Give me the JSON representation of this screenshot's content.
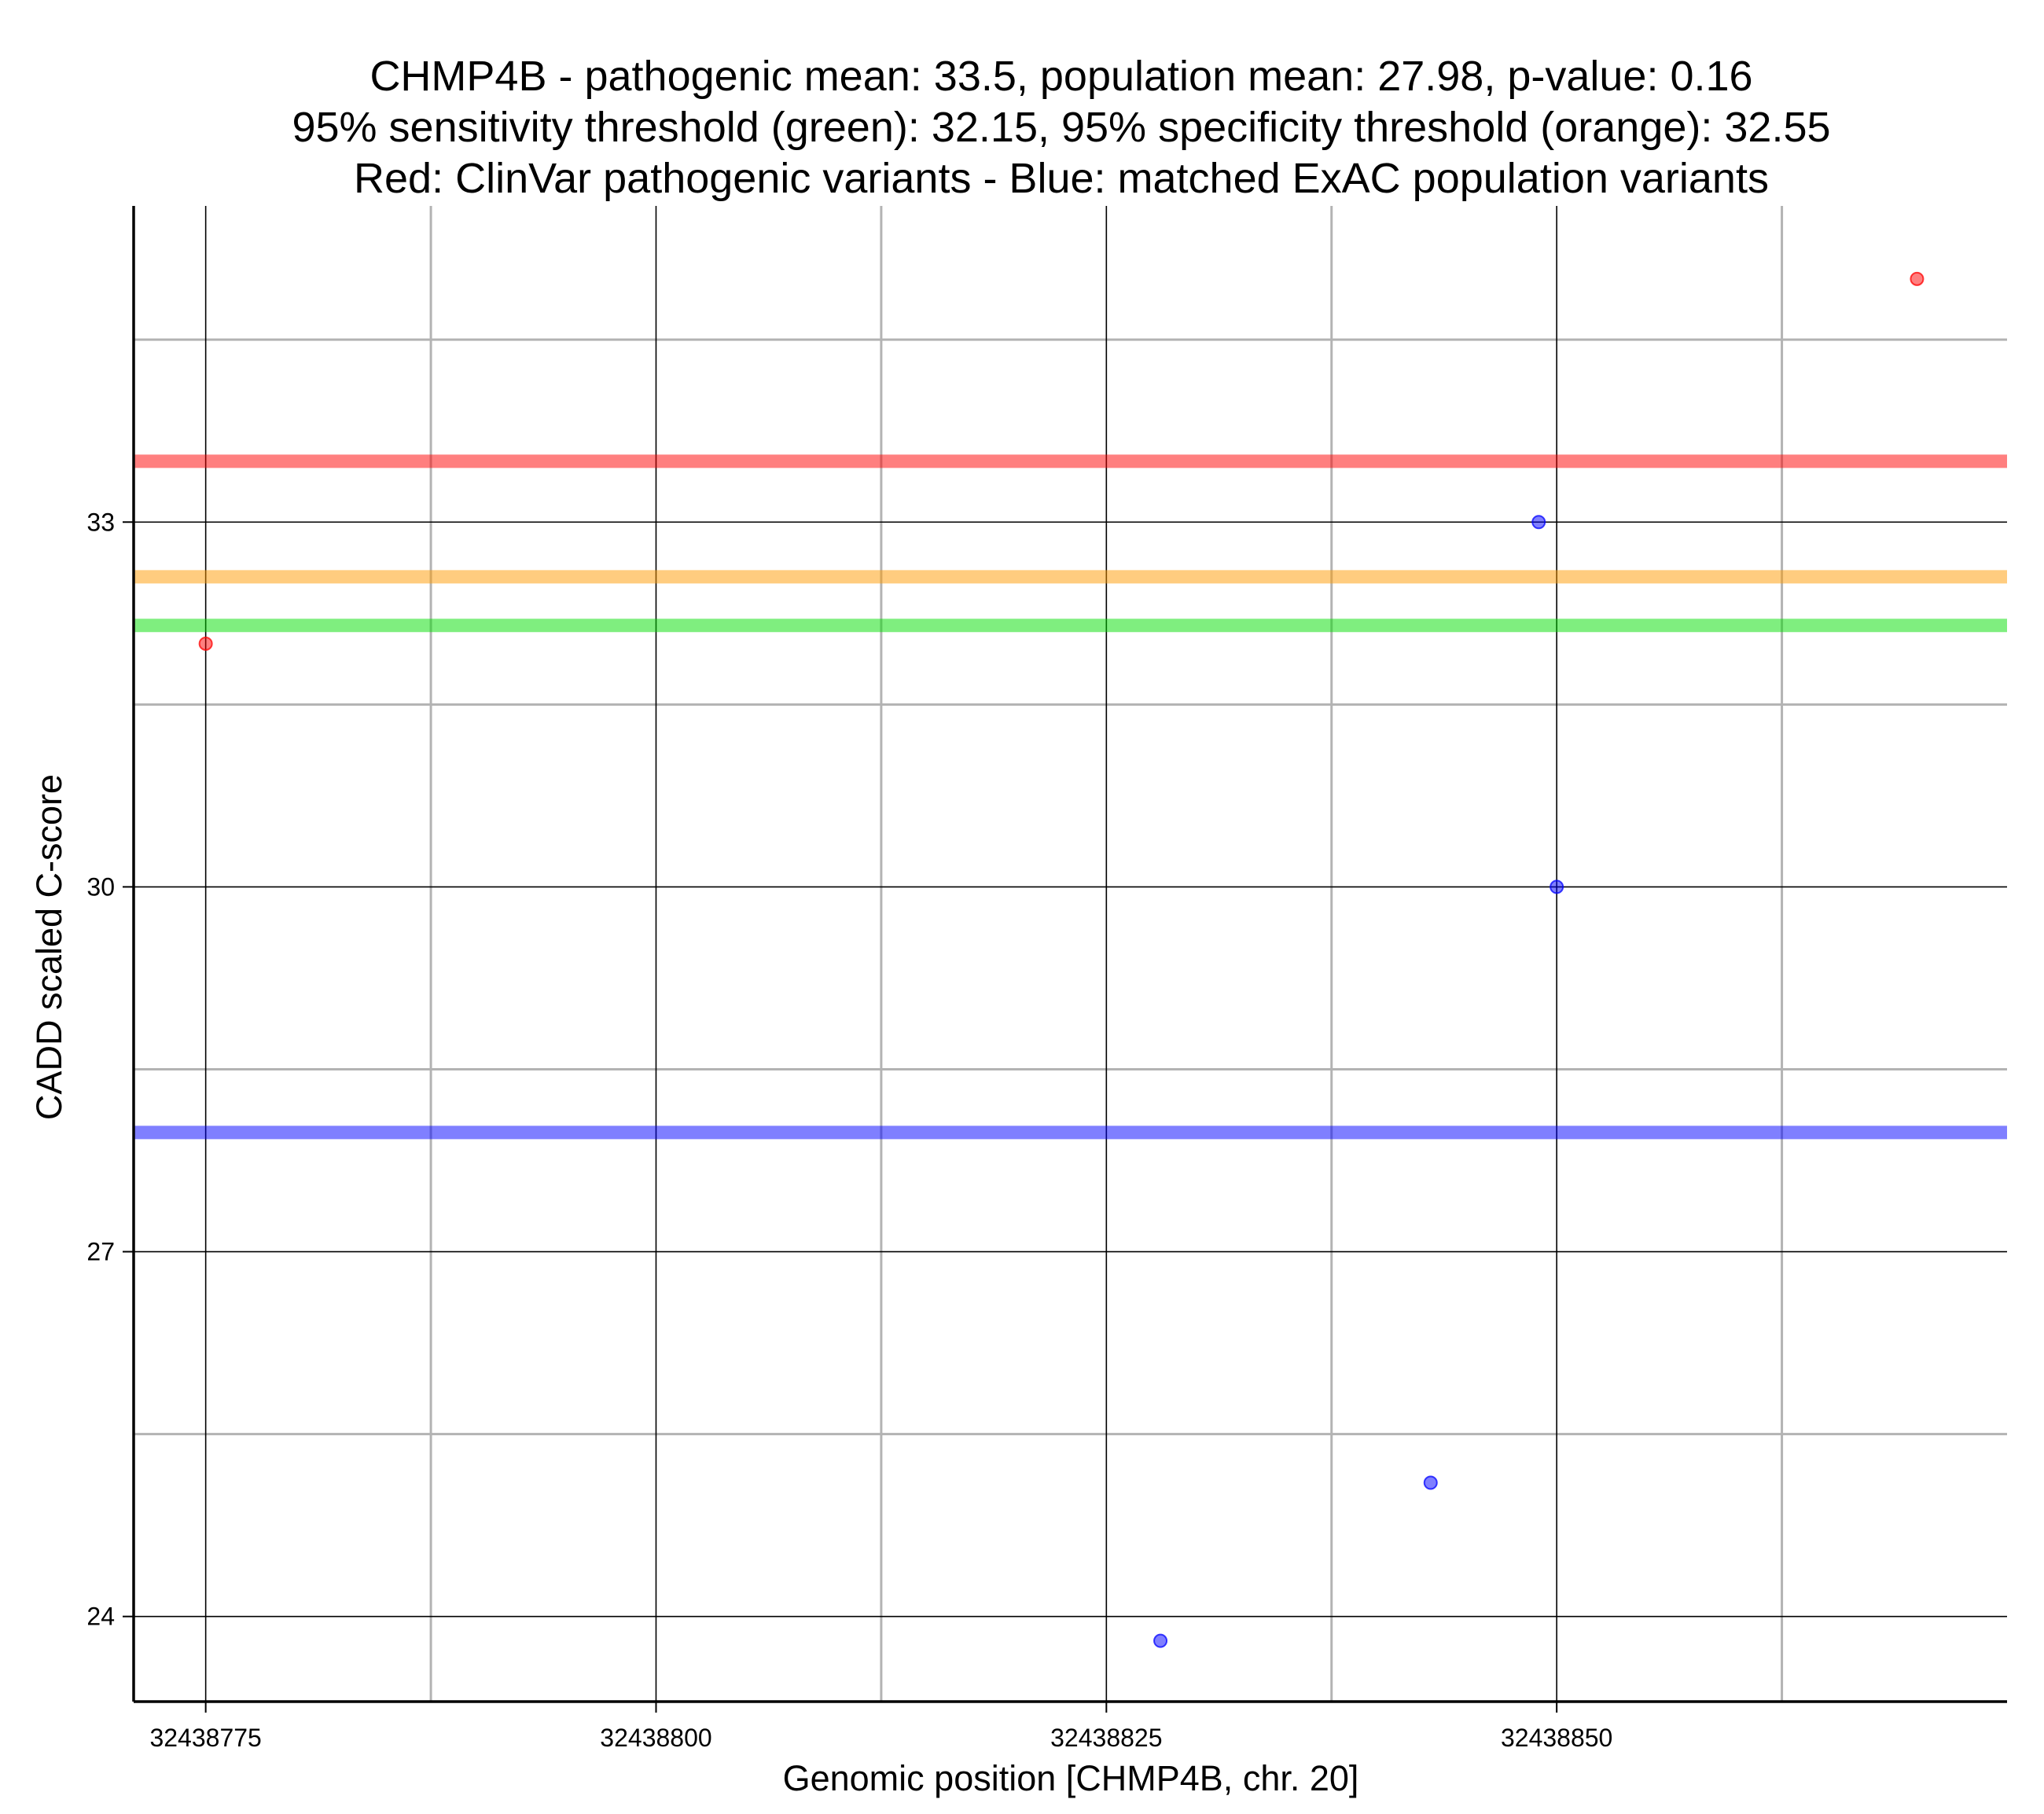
{
  "chart_data": {
    "type": "scatter",
    "title": [
      "CHMP4B - pathogenic mean: 33.5, population mean: 27.98, p-value: 0.16",
      "95% sensitivity threshold (green): 32.15, 95% specificity threshold (orange): 32.55",
      "Red: ClinVar pathogenic variants - Blue: matched ExAC population variants"
    ],
    "xlabel": "Genomic position [CHMP4B, chr. 20]",
    "ylabel": "CADD scaled C-score",
    "xlim": [
      32438771,
      32438875
    ],
    "ylim": [
      23.3,
      35.6
    ],
    "x_ticks": [
      32438775,
      32438800,
      32438825,
      32438850
    ],
    "x_ticks_labels": [
      "32438775",
      "32438800",
      "32438825",
      "32438850"
    ],
    "x_minor_gridlines": [
      32438787.5,
      32438812.5,
      32438837.5,
      32438862.5
    ],
    "y_ticks": [
      24,
      27,
      30,
      33
    ],
    "y_ticks_labels": [
      "24",
      "27",
      "30",
      "33"
    ],
    "y_minor_gridlines": [
      25.5,
      28.5,
      31.5,
      34.5
    ],
    "grid": true,
    "series": [
      {
        "name": "ClinVar pathogenic variants",
        "color": "#ff0000",
        "points": [
          {
            "x": 32438775,
            "y": 32.0
          },
          {
            "x": 32438870,
            "y": 35.0
          }
        ]
      },
      {
        "name": "matched ExAC population variants",
        "color": "#0000ff",
        "points": [
          {
            "x": 32438828,
            "y": 23.8
          },
          {
            "x": 32438843,
            "y": 25.1
          },
          {
            "x": 32438849,
            "y": 33.0
          },
          {
            "x": 32438850,
            "y": 30.0
          }
        ]
      }
    ],
    "reference_lines": [
      {
        "label": "pathogenic mean",
        "y": 33.5,
        "color": "#ff0000"
      },
      {
        "label": "95% specificity threshold",
        "y": 32.55,
        "color": "#ff9900"
      },
      {
        "label": "95% sensitivity threshold",
        "y": 32.15,
        "color": "#00dd00"
      },
      {
        "label": "population mean",
        "y": 27.98,
        "color": "#0000ff"
      }
    ]
  }
}
